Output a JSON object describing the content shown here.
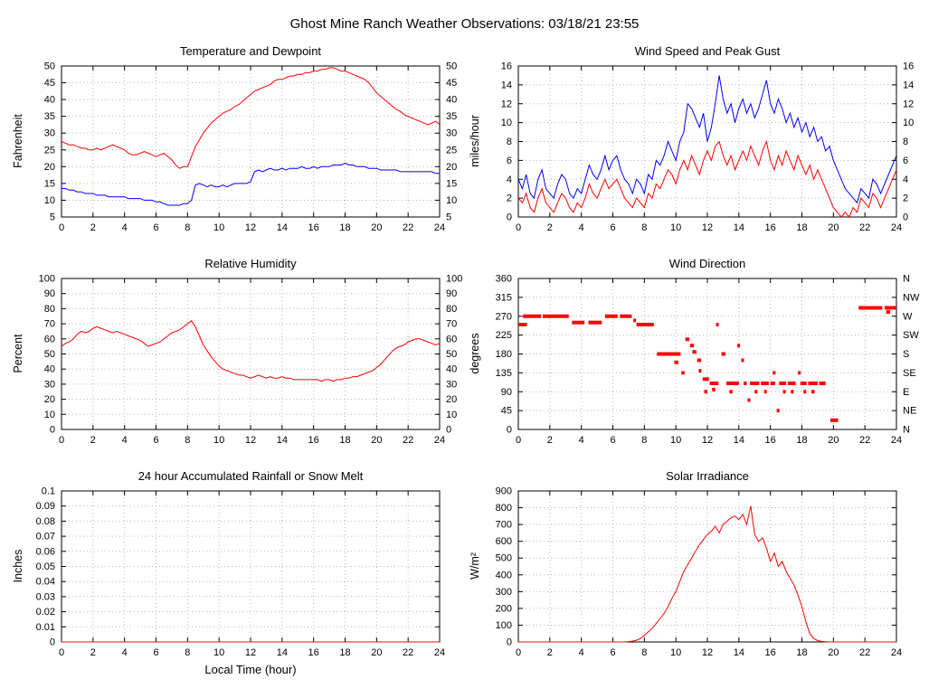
{
  "page_title": "Ghost Mine Ranch Weather Observations: 03/18/21 23:55",
  "colors": {
    "red_series": "#ff0000",
    "blue_series": "#0000ff"
  },
  "chart_data": [
    {
      "type": "line",
      "title": "Temperature and Dewpoint",
      "ylabel": "Fahrenheit",
      "xlim": [
        0,
        24
      ],
      "ylim": [
        5,
        50
      ],
      "xticks": [
        0,
        2,
        4,
        6,
        8,
        10,
        12,
        14,
        16,
        18,
        20,
        22,
        24
      ],
      "yticks": [
        5,
        10,
        15,
        20,
        25,
        30,
        35,
        40,
        45,
        50
      ],
      "right_tick_labels": [
        "5",
        "10",
        "15",
        "20",
        "25",
        "30",
        "35",
        "40",
        "45",
        "50"
      ],
      "grid": true,
      "series": [
        {
          "name": "Temperature",
          "color": "#ff0000",
          "type": "line",
          "x_start": 0,
          "x_step": 0.25,
          "y": [
            27.5,
            27,
            26.5,
            26.5,
            26,
            25.5,
            25.5,
            25,
            25,
            25.5,
            25,
            25.5,
            26,
            26.5,
            26,
            25.5,
            25,
            24,
            23.5,
            23.5,
            24,
            24.5,
            24,
            23.5,
            23,
            23.5,
            24,
            23,
            22,
            20.5,
            19.5,
            20,
            20,
            23,
            26,
            28,
            30,
            31.5,
            33,
            34,
            35,
            36,
            36.5,
            37,
            38,
            38.5,
            39.5,
            40.5,
            41.5,
            42.5,
            43,
            43.5,
            44,
            44.5,
            45.5,
            46,
            46,
            46.5,
            47,
            47,
            47.5,
            47.5,
            48,
            48,
            48.5,
            48.5,
            49,
            49,
            49.5,
            49.5,
            49,
            48.5,
            48.5,
            48,
            47.5,
            47,
            46.5,
            46,
            45,
            43.5,
            42,
            41,
            40,
            39,
            38,
            37,
            36.5,
            35.5,
            35,
            34.5,
            34,
            33.5,
            33,
            32.5,
            33,
            33.5,
            32.5
          ]
        },
        {
          "name": "Dewpoint",
          "color": "#0000ff",
          "type": "line",
          "x_start": 0,
          "x_step": 0.25,
          "y": [
            13.5,
            13.5,
            13,
            13,
            12.5,
            12.5,
            12,
            12,
            12,
            11.5,
            11.5,
            11.5,
            11,
            11,
            11,
            11,
            11,
            10.5,
            10.5,
            10.5,
            10.5,
            10,
            10,
            10,
            9.5,
            9.5,
            9,
            8.5,
            8.5,
            8.5,
            8.5,
            9,
            9,
            10,
            14.5,
            15,
            14.5,
            14,
            14.5,
            14,
            14,
            14.5,
            14,
            14.5,
            15,
            15,
            15,
            15,
            15.5,
            18.5,
            19,
            18.5,
            19,
            19.5,
            19,
            19,
            19.5,
            19,
            19.5,
            19.5,
            19.5,
            20,
            19.5,
            19.5,
            20,
            19.5,
            20,
            20,
            20,
            20.5,
            20.5,
            20.5,
            21,
            20.5,
            20.5,
            20,
            20,
            20,
            19.5,
            19.5,
            19.5,
            19,
            19,
            19,
            19,
            19,
            18.5,
            18.5,
            18.5,
            18.5,
            18.5,
            18.5,
            18.5,
            18.5,
            18.5,
            18,
            18
          ]
        }
      ]
    },
    {
      "type": "line",
      "title": "Wind Speed and Peak Gust",
      "ylabel": "miles/hour",
      "xlim": [
        0,
        24
      ],
      "ylim": [
        0,
        16
      ],
      "xticks": [
        0,
        2,
        4,
        6,
        8,
        10,
        12,
        14,
        16,
        18,
        20,
        22,
        24
      ],
      "yticks": [
        0,
        2,
        4,
        6,
        8,
        10,
        12,
        14,
        16
      ],
      "right_tick_labels": [
        "0",
        "2",
        "4",
        "6",
        "8",
        "10",
        "12",
        "14",
        "16"
      ],
      "grid": true,
      "series": [
        {
          "name": "Peak Gust",
          "color": "#0000ff",
          "type": "line",
          "x_start": 0,
          "x_step": 0.25,
          "y": [
            4,
            3,
            4.5,
            2.5,
            2,
            4,
            5,
            3,
            2.5,
            2,
            3.5,
            4.5,
            4,
            2.5,
            2,
            3,
            2.5,
            4,
            5.5,
            4.5,
            4,
            5,
            6.5,
            5,
            6,
            6.5,
            5,
            4,
            3.5,
            2.5,
            4,
            3.5,
            2.5,
            4.5,
            4,
            6,
            5.5,
            6.5,
            8,
            7,
            6,
            8,
            9,
            12,
            11.5,
            10.5,
            9.5,
            11,
            8,
            9.5,
            12,
            15,
            12.5,
            11,
            12,
            10,
            11.5,
            12.5,
            11,
            12,
            10.5,
            11.5,
            13,
            14.5,
            12,
            11,
            12.5,
            11.5,
            10,
            11,
            9.5,
            10.5,
            9,
            10,
            8.5,
            9.5,
            8,
            8.5,
            7,
            7.5,
            6,
            5,
            4,
            3,
            2.5,
            2,
            1.5,
            3,
            2.5,
            2,
            4,
            3.5,
            2.5,
            3.5,
            4.5,
            5.5,
            6.5
          ]
        },
        {
          "name": "Wind Speed",
          "color": "#ff0000",
          "type": "line",
          "x_start": 0,
          "x_step": 0.25,
          "y": [
            2,
            1.5,
            2.5,
            1,
            0.5,
            2,
            3,
            1.5,
            1,
            0.5,
            1.5,
            2.5,
            2,
            1,
            0.5,
            1.5,
            1,
            2,
            3.5,
            2.5,
            2,
            3,
            4,
            3,
            3.5,
            4,
            3,
            2,
            1.5,
            1,
            2,
            1.5,
            1,
            2.5,
            2,
            3.5,
            3,
            4,
            5,
            4.5,
            3.5,
            5,
            6,
            5,
            6.5,
            5.5,
            4.5,
            6,
            7,
            6,
            7.5,
            8,
            6.5,
            5.5,
            6.5,
            5,
            6,
            7,
            6,
            7.5,
            6.5,
            5.5,
            7,
            8,
            6,
            5,
            6.5,
            5.5,
            7,
            6,
            5,
            6.5,
            5.5,
            4.5,
            5.5,
            4,
            5,
            4,
            3,
            2,
            1,
            0.5,
            0,
            0.5,
            0,
            1,
            0.5,
            2,
            1.5,
            1,
            2.5,
            2,
            1,
            2,
            3,
            4,
            5
          ]
        }
      ]
    },
    {
      "type": "line",
      "title": "Relative Humidity",
      "ylabel": "Percent",
      "xlim": [
        0,
        24
      ],
      "ylim": [
        0,
        100
      ],
      "xticks": [
        0,
        2,
        4,
        6,
        8,
        10,
        12,
        14,
        16,
        18,
        20,
        22,
        24
      ],
      "yticks": [
        0,
        10,
        20,
        30,
        40,
        50,
        60,
        70,
        80,
        90,
        100
      ],
      "right_tick_labels": [
        "0",
        "10",
        "20",
        "30",
        "40",
        "50",
        "60",
        "70",
        "80",
        "90",
        "100"
      ],
      "grid": true,
      "series": [
        {
          "name": "Relative Humidity",
          "color": "#ff0000",
          "type": "line",
          "x_start": 0,
          "x_step": 0.25,
          "y": [
            55,
            57,
            58,
            60,
            63,
            65,
            64,
            65,
            67,
            68,
            67,
            66,
            65,
            64,
            65,
            64,
            63,
            62,
            61,
            60,
            59,
            57,
            55,
            56,
            57,
            58,
            60,
            62,
            64,
            65,
            66,
            68,
            70,
            72,
            68,
            62,
            56,
            52,
            48,
            45,
            42,
            40,
            39,
            38,
            37,
            36,
            36,
            35,
            34,
            35,
            36,
            35,
            34,
            35,
            34,
            34,
            35,
            34,
            34,
            33,
            33,
            33,
            33,
            33,
            33,
            33,
            32,
            33,
            33,
            32,
            33,
            33,
            34,
            34,
            35,
            35,
            36,
            37,
            38,
            39,
            41,
            43,
            46,
            49,
            52,
            54,
            55,
            56,
            58,
            59,
            60,
            60,
            59,
            58,
            57,
            56,
            57
          ]
        }
      ]
    },
    {
      "type": "scatter",
      "title": "Wind Direction",
      "ylabel": "degrees",
      "xlim": [
        0,
        24
      ],
      "ylim": [
        0,
        360
      ],
      "xticks": [
        0,
        2,
        4,
        6,
        8,
        10,
        12,
        14,
        16,
        18,
        20,
        22,
        24
      ],
      "yticks": [
        0,
        45,
        90,
        135,
        180,
        225,
        270,
        315,
        360
      ],
      "right_tick_labels": [
        "N",
        "NE",
        "E",
        "SE",
        "S",
        "SW",
        "W",
        "NW",
        "N"
      ],
      "grid": true,
      "series": [
        {
          "name": "Wind Direction",
          "color": "#ff0000",
          "type": "hsegments",
          "segments": [
            [
              0.0,
              0.55,
              250
            ],
            [
              0.3,
              1.45,
              270
            ],
            [
              1.55,
              3.2,
              270
            ],
            [
              3.4,
              4.2,
              255
            ],
            [
              4.45,
              5.3,
              255
            ],
            [
              5.5,
              6.3,
              270
            ],
            [
              6.45,
              7.2,
              270
            ],
            [
              7.3,
              7.4,
              260
            ],
            [
              7.5,
              8.6,
              250
            ],
            [
              8.8,
              10.3,
              180
            ],
            [
              9.9,
              10.15,
              160
            ],
            [
              10.35,
              10.55,
              135
            ],
            [
              10.6,
              10.85,
              215
            ],
            [
              10.9,
              11.15,
              200
            ],
            [
              11.05,
              11.3,
              185
            ],
            [
              11.35,
              11.6,
              165
            ],
            [
              11.45,
              11.55,
              140
            ],
            [
              11.7,
              12.1,
              120
            ],
            [
              11.8,
              12.0,
              90
            ],
            [
              12.15,
              12.7,
              110
            ],
            [
              12.3,
              12.5,
              95
            ],
            [
              12.55,
              12.65,
              250
            ],
            [
              12.9,
              13.15,
              180
            ],
            [
              13.2,
              14.0,
              110
            ],
            [
              13.4,
              13.6,
              90
            ],
            [
              13.9,
              14.0,
              200
            ],
            [
              14.15,
              14.25,
              165
            ],
            [
              14.3,
              14.5,
              110
            ],
            [
              14.55,
              14.65,
              70
            ],
            [
              14.7,
              15.3,
              110
            ],
            [
              15.0,
              15.1,
              90
            ],
            [
              15.4,
              15.9,
              110
            ],
            [
              15.6,
              15.7,
              90
            ],
            [
              16.0,
              16.3,
              110
            ],
            [
              16.15,
              16.25,
              135
            ],
            [
              16.4,
              16.5,
              45
            ],
            [
              16.55,
              17.0,
              110
            ],
            [
              16.8,
              16.9,
              90
            ],
            [
              17.1,
              17.6,
              110
            ],
            [
              17.3,
              17.4,
              90
            ],
            [
              17.75,
              17.85,
              135
            ],
            [
              17.9,
              18.3,
              110
            ],
            [
              18.1,
              18.2,
              90
            ],
            [
              18.4,
              19.0,
              110
            ],
            [
              18.6,
              18.8,
              90
            ],
            [
              19.1,
              19.5,
              110
            ],
            [
              19.8,
              20.3,
              22
            ],
            [
              21.6,
              23.1,
              290
            ],
            [
              23.25,
              24.0,
              290
            ],
            [
              23.35,
              23.6,
              280
            ]
          ]
        }
      ]
    },
    {
      "type": "line",
      "title": "24 hour Accumulated Rainfall or Snow Melt",
      "ylabel": "Inches",
      "xlabel": "Local Time (hour)",
      "xlim": [
        0,
        24
      ],
      "ylim": [
        0,
        0.1
      ],
      "xticks": [
        0,
        2,
        4,
        6,
        8,
        10,
        12,
        14,
        16,
        18,
        20,
        22,
        24
      ],
      "yticks": [
        0,
        0.01,
        0.02,
        0.03,
        0.04,
        0.05,
        0.06,
        0.07,
        0.08,
        0.09,
        0.1
      ],
      "ytick_labels": [
        "0",
        "0.01",
        "0.02",
        "0.03",
        "0.04",
        "0.05",
        "0.06",
        "0.07",
        "0.08",
        "0.09",
        "0.1"
      ],
      "grid": true,
      "series": [
        {
          "name": "Accumulated Rainfall",
          "color": "#ff0000",
          "type": "line",
          "x": [
            0,
            24
          ],
          "y": [
            0,
            0
          ]
        }
      ]
    },
    {
      "type": "line",
      "title": "Solar Irradiance",
      "ylabel": "W/m²",
      "xlim": [
        0,
        24
      ],
      "ylim": [
        0,
        900
      ],
      "xticks": [
        0,
        2,
        4,
        6,
        8,
        10,
        12,
        14,
        16,
        18,
        20,
        22,
        24
      ],
      "yticks": [
        0,
        100,
        200,
        300,
        400,
        500,
        600,
        700,
        800,
        900
      ],
      "grid": true,
      "series": [
        {
          "name": "Solar Irradiance",
          "color": "#ff0000",
          "type": "line",
          "x_start": 0,
          "x_step": 0.25,
          "y": [
            0,
            0,
            0,
            0,
            0,
            0,
            0,
            0,
            0,
            0,
            0,
            0,
            0,
            0,
            0,
            0,
            0,
            0,
            0,
            0,
            0,
            0,
            0,
            0,
            0,
            0,
            0,
            0,
            2,
            5,
            10,
            20,
            40,
            60,
            80,
            110,
            140,
            170,
            210,
            260,
            300,
            360,
            420,
            460,
            500,
            540,
            580,
            610,
            640,
            660,
            690,
            650,
            700,
            720,
            740,
            750,
            730,
            760,
            700,
            810,
            640,
            600,
            620,
            560,
            480,
            530,
            450,
            480,
            420,
            380,
            340,
            280,
            210,
            120,
            50,
            20,
            8,
            3,
            1,
            0,
            0,
            0,
            0,
            0,
            0,
            0,
            0,
            0,
            0,
            0,
            0,
            0,
            0,
            0,
            0,
            0,
            0
          ]
        }
      ]
    }
  ]
}
